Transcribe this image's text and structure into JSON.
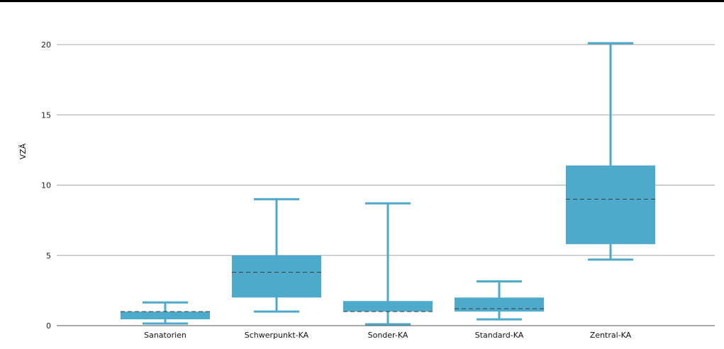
{
  "chart_data": {
    "type": "boxplot",
    "title": "",
    "xlabel": "",
    "ylabel": "VZÄ",
    "ylim": [
      0,
      20
    ],
    "yticks": [
      0,
      5,
      10,
      15,
      20
    ],
    "grid": true,
    "legend": "none",
    "box_color": "#4eaacb",
    "median_color": "#3a3a3a",
    "categories": [
      "Sanatorien",
      "Schwerpunkt-KA",
      "Sonder-KA",
      "Standard-KA",
      "Zentral-KA"
    ],
    "boxes": [
      {
        "min": 0.15,
        "q1": 0.45,
        "median": 1.0,
        "q3": 1.0,
        "max": 1.65
      },
      {
        "min": 1.0,
        "q1": 2.0,
        "median": 3.8,
        "q3": 5.0,
        "max": 9.0
      },
      {
        "min": 0.1,
        "q1": 1.0,
        "median": 1.0,
        "q3": 1.75,
        "max": 8.7
      },
      {
        "min": 0.45,
        "q1": 1.0,
        "median": 1.2,
        "q3": 2.0,
        "max": 3.15
      },
      {
        "min": 4.7,
        "q1": 5.8,
        "median": 9.0,
        "q3": 11.4,
        "max": 20.1
      }
    ]
  }
}
